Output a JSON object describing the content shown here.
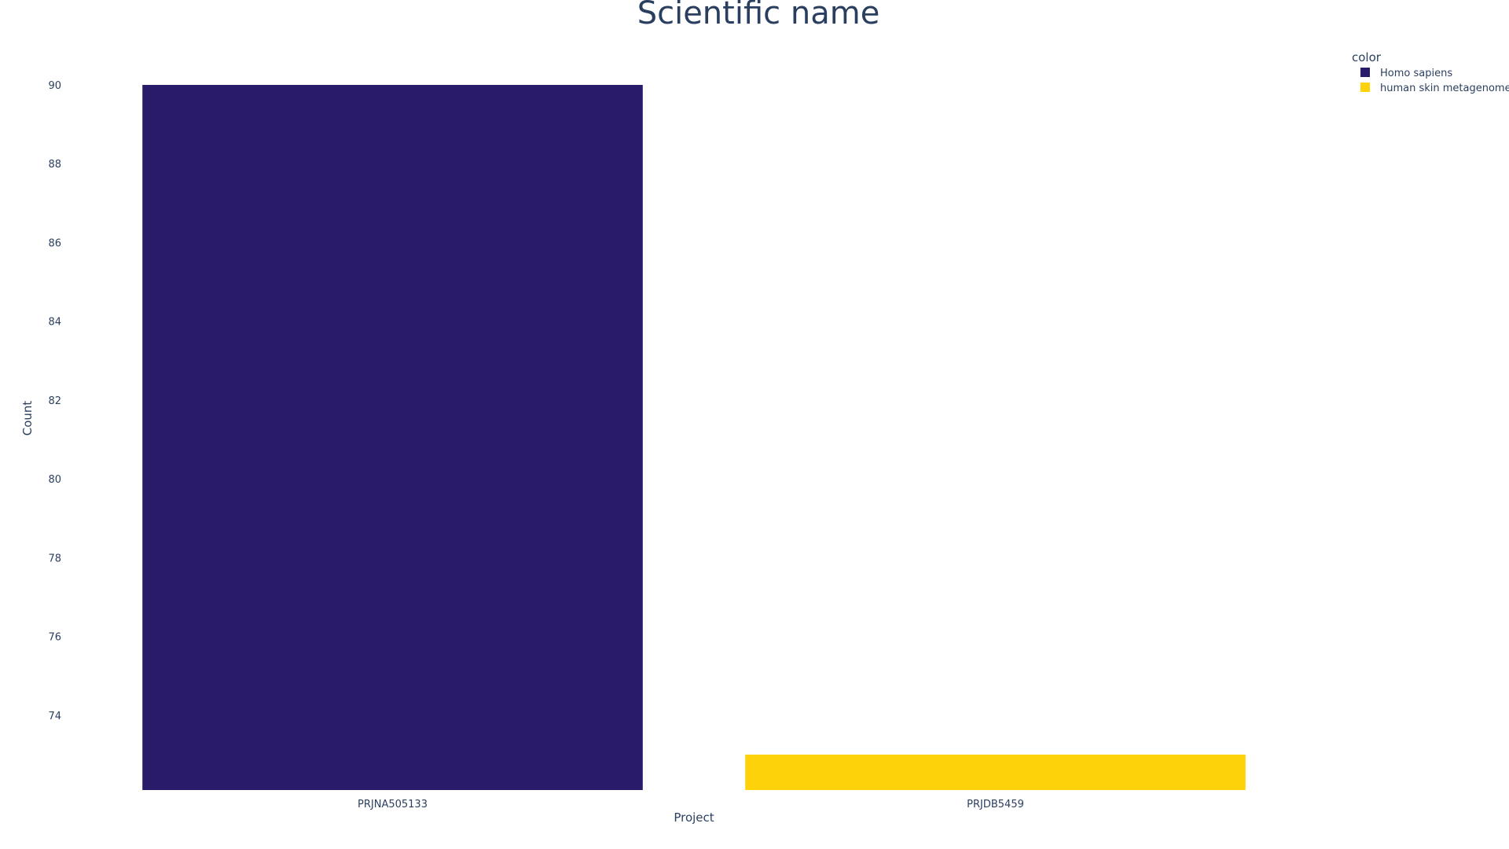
{
  "chart_data": {
    "type": "bar",
    "title": "Scientific name",
    "xlabel": "Project",
    "ylabel": "Count",
    "categories": [
      "PRJNA505133",
      "PRJDB5459"
    ],
    "series": [
      {
        "name": "Homo sapiens",
        "category": "PRJNA505133",
        "value": 90,
        "color": "#2a1a6a"
      },
      {
        "name": "human skin metagenome",
        "category": "PRJDB5459",
        "value": 73,
        "color": "#fed20a"
      }
    ],
    "ylim": [
      72.1,
      90
    ],
    "yticks": [
      "74",
      "76",
      "78",
      "80",
      "82",
      "84",
      "86",
      "88",
      "90"
    ],
    "legend": {
      "title": "color",
      "position": "top-right"
    },
    "grid": false
  }
}
